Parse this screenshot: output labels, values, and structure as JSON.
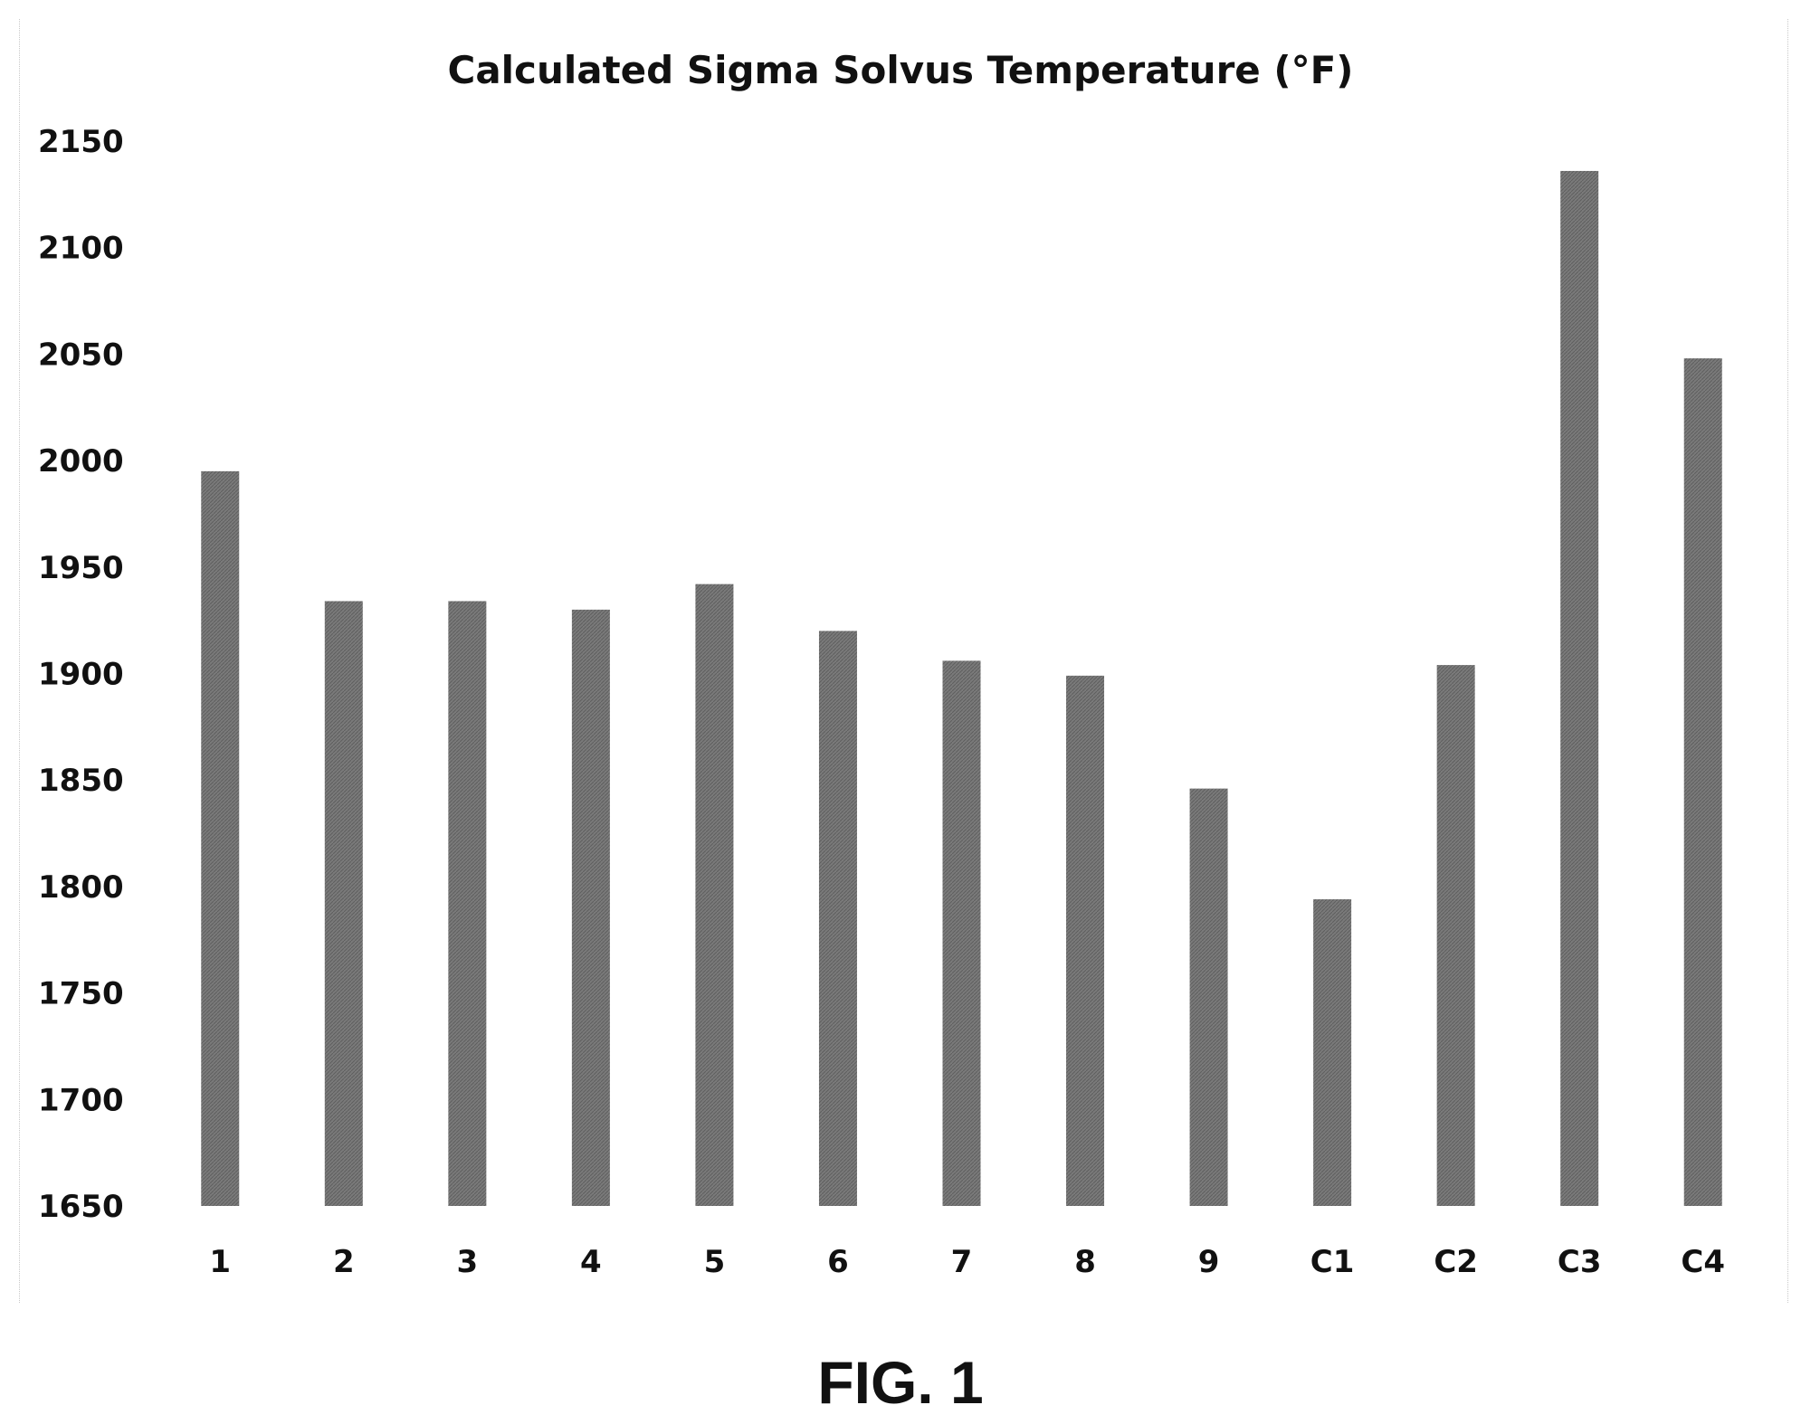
{
  "chart_data": {
    "type": "bar",
    "title": "Calculated Sigma Solvus Temperature (°F)",
    "xlabel": "",
    "ylabel": "",
    "categories": [
      "1",
      "2",
      "3",
      "4",
      "5",
      "6",
      "7",
      "8",
      "9",
      "C1",
      "C2",
      "C3",
      "C4"
    ],
    "values": [
      1995,
      1934,
      1934,
      1930,
      1942,
      1920,
      1906,
      1899,
      1846,
      1794,
      1904,
      2136,
      2048
    ],
    "ylim": [
      1650,
      2150
    ],
    "yticks": [
      2150,
      2100,
      2050,
      2000,
      1950,
      1900,
      1850,
      1800,
      1750,
      1700,
      1650
    ],
    "grid": false,
    "bar_color": "#777777"
  },
  "figure": {
    "label": "FIG. 1"
  }
}
